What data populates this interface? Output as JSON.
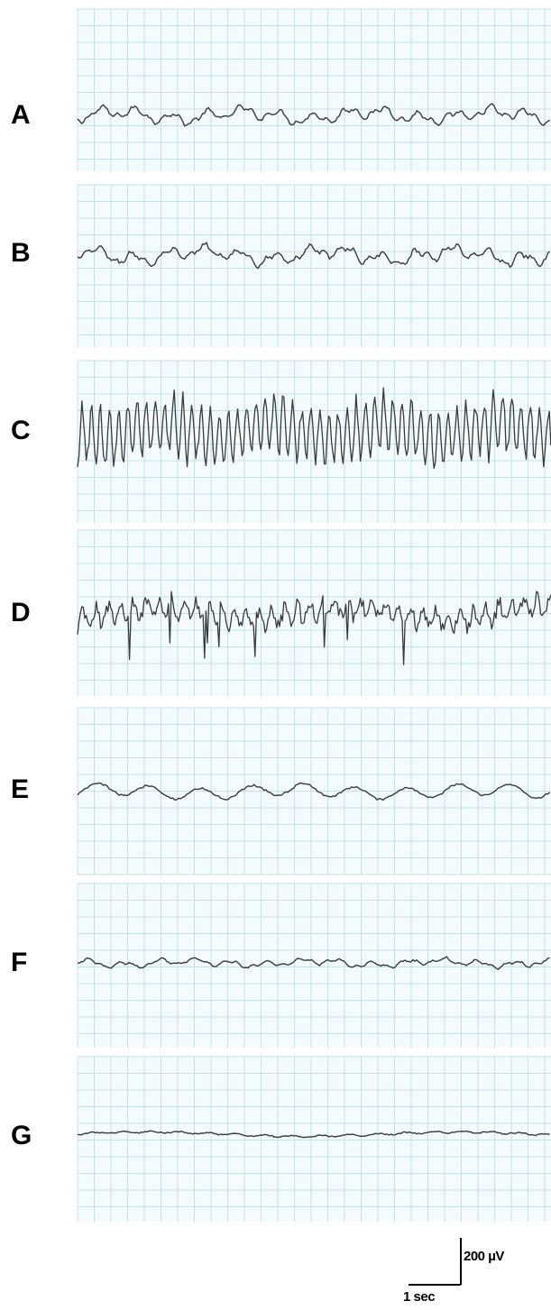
{
  "chart_data": {
    "type": "line",
    "title": "",
    "xlabel": "",
    "ylabel": "",
    "grid": true,
    "legend": "none",
    "colors": {
      "trace": "#3a3a3a",
      "grid": "#bfe3ec",
      "background": "#f4fbfd"
    },
    "scale_bar": {
      "amplitude_label": "200 µV",
      "time_label": "1 sec",
      "amplitude_uv": 200,
      "time_s": 1
    },
    "series": [
      {
        "name": "A",
        "pattern": "moderate",
        "amplitude_uv": 40,
        "peak_to_peak_uv": 80
      },
      {
        "name": "B",
        "pattern": "moderate",
        "amplitude_uv": 45,
        "peak_to_peak_uv": 90
      },
      {
        "name": "C",
        "pattern": "high-amplitude rhythmic spiking",
        "amplitude_uv": 120,
        "peak_to_peak_uv": 260
      },
      {
        "name": "D",
        "pattern": "spike bursts",
        "amplitude_uv": 90,
        "peak_to_peak_uv": 300
      },
      {
        "name": "E",
        "pattern": "slow waves",
        "amplitude_uv": 35,
        "peak_to_peak_uv": 60
      },
      {
        "name": "F",
        "pattern": "low amplitude",
        "amplitude_uv": 22,
        "peak_to_peak_uv": 45
      },
      {
        "name": "G",
        "pattern": "low amplitude, flattened",
        "amplitude_uv": 15,
        "peak_to_peak_uv": 30
      }
    ]
  }
}
